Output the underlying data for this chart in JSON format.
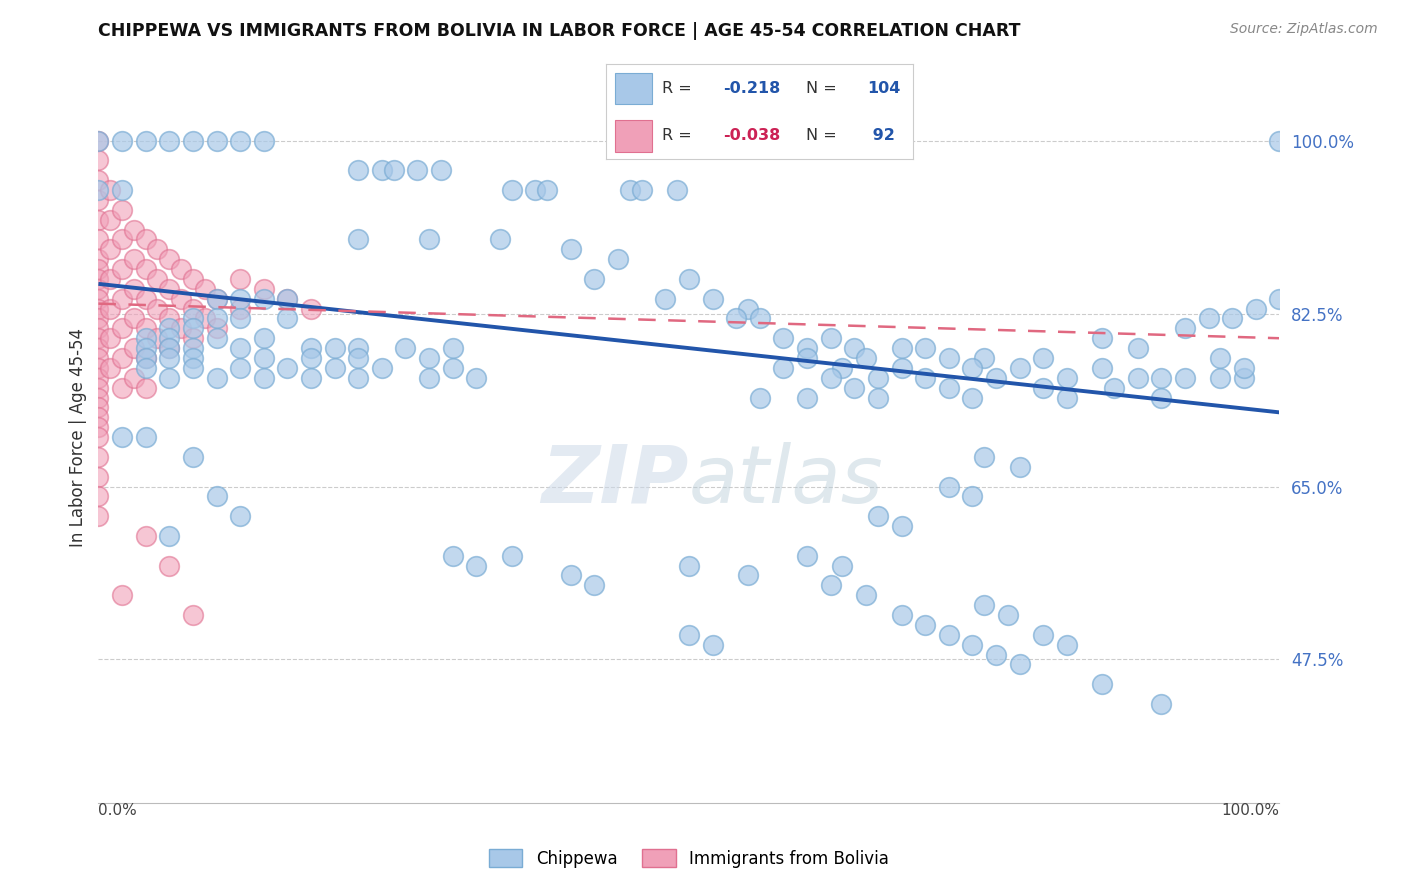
{
  "title": "CHIPPEWA VS IMMIGRANTS FROM BOLIVIA IN LABOR FORCE | AGE 45-54 CORRELATION CHART",
  "source": "Source: ZipAtlas.com",
  "ylabel": "In Labor Force | Age 45-54",
  "blue_color": "#a8c8e8",
  "pink_color": "#f0a0b8",
  "blue_edge_color": "#7aacd4",
  "pink_edge_color": "#e07090",
  "blue_line_color": "#2255aa",
  "pink_line_color": "#e06880",
  "watermark_color": "#d0e4f4",
  "legend_label_blue": "Chippewa",
  "legend_label_pink": "Immigrants from Bolivia",
  "xlim": [
    0.0,
    1.0
  ],
  "ylim": [
    0.33,
    1.07
  ],
  "yticks": [
    0.475,
    0.65,
    0.825,
    1.0
  ],
  "ytick_labels": [
    "47.5%",
    "65.0%",
    "82.5%",
    "100.0%"
  ],
  "blue_trend": [
    0.855,
    0.725
  ],
  "pink_trend": [
    0.835,
    0.8
  ],
  "blue_scatter": [
    [
      0.0,
      1.0
    ],
    [
      0.02,
      1.0
    ],
    [
      0.04,
      1.0
    ],
    [
      0.06,
      1.0
    ],
    [
      0.08,
      1.0
    ],
    [
      0.1,
      1.0
    ],
    [
      0.12,
      1.0
    ],
    [
      0.14,
      1.0
    ],
    [
      0.0,
      0.95
    ],
    [
      0.02,
      0.95
    ],
    [
      0.22,
      0.97
    ],
    [
      0.24,
      0.97
    ],
    [
      0.25,
      0.97
    ],
    [
      0.27,
      0.97
    ],
    [
      0.29,
      0.97
    ],
    [
      0.35,
      0.95
    ],
    [
      0.37,
      0.95
    ],
    [
      0.38,
      0.95
    ],
    [
      0.45,
      0.95
    ],
    [
      0.46,
      0.95
    ],
    [
      0.49,
      0.95
    ],
    [
      0.22,
      0.9
    ],
    [
      0.28,
      0.9
    ],
    [
      0.34,
      0.9
    ],
    [
      0.4,
      0.89
    ],
    [
      0.44,
      0.88
    ],
    [
      0.42,
      0.86
    ],
    [
      0.5,
      0.86
    ],
    [
      0.48,
      0.84
    ],
    [
      0.52,
      0.84
    ],
    [
      0.55,
      0.83
    ],
    [
      0.54,
      0.82
    ],
    [
      0.56,
      0.82
    ],
    [
      0.58,
      0.8
    ],
    [
      0.62,
      0.8
    ],
    [
      0.6,
      0.79
    ],
    [
      0.64,
      0.79
    ],
    [
      0.68,
      0.79
    ],
    [
      0.7,
      0.79
    ],
    [
      0.6,
      0.78
    ],
    [
      0.65,
      0.78
    ],
    [
      0.72,
      0.78
    ],
    [
      0.75,
      0.78
    ],
    [
      0.8,
      0.78
    ],
    [
      0.58,
      0.77
    ],
    [
      0.63,
      0.77
    ],
    [
      0.68,
      0.77
    ],
    [
      0.74,
      0.77
    ],
    [
      0.78,
      0.77
    ],
    [
      0.85,
      0.77
    ],
    [
      0.62,
      0.76
    ],
    [
      0.66,
      0.76
    ],
    [
      0.7,
      0.76
    ],
    [
      0.76,
      0.76
    ],
    [
      0.82,
      0.76
    ],
    [
      0.88,
      0.76
    ],
    [
      0.9,
      0.76
    ],
    [
      0.92,
      0.76
    ],
    [
      0.95,
      0.76
    ],
    [
      0.97,
      0.76
    ],
    [
      0.64,
      0.75
    ],
    [
      0.72,
      0.75
    ],
    [
      0.8,
      0.75
    ],
    [
      0.86,
      0.75
    ],
    [
      0.56,
      0.74
    ],
    [
      0.6,
      0.74
    ],
    [
      0.66,
      0.74
    ],
    [
      0.74,
      0.74
    ],
    [
      0.82,
      0.74
    ],
    [
      0.9,
      0.74
    ],
    [
      0.1,
      0.84
    ],
    [
      0.12,
      0.84
    ],
    [
      0.14,
      0.84
    ],
    [
      0.16,
      0.84
    ],
    [
      0.08,
      0.82
    ],
    [
      0.1,
      0.82
    ],
    [
      0.12,
      0.82
    ],
    [
      0.16,
      0.82
    ],
    [
      0.06,
      0.81
    ],
    [
      0.08,
      0.81
    ],
    [
      0.04,
      0.8
    ],
    [
      0.06,
      0.8
    ],
    [
      0.1,
      0.8
    ],
    [
      0.14,
      0.8
    ],
    [
      0.04,
      0.79
    ],
    [
      0.06,
      0.79
    ],
    [
      0.08,
      0.79
    ],
    [
      0.12,
      0.79
    ],
    [
      0.18,
      0.79
    ],
    [
      0.2,
      0.79
    ],
    [
      0.22,
      0.79
    ],
    [
      0.26,
      0.79
    ],
    [
      0.3,
      0.79
    ],
    [
      0.04,
      0.78
    ],
    [
      0.06,
      0.78
    ],
    [
      0.08,
      0.78
    ],
    [
      0.14,
      0.78
    ],
    [
      0.18,
      0.78
    ],
    [
      0.22,
      0.78
    ],
    [
      0.28,
      0.78
    ],
    [
      0.04,
      0.77
    ],
    [
      0.08,
      0.77
    ],
    [
      0.12,
      0.77
    ],
    [
      0.16,
      0.77
    ],
    [
      0.2,
      0.77
    ],
    [
      0.24,
      0.77
    ],
    [
      0.3,
      0.77
    ],
    [
      0.06,
      0.76
    ],
    [
      0.1,
      0.76
    ],
    [
      0.14,
      0.76
    ],
    [
      0.18,
      0.76
    ],
    [
      0.22,
      0.76
    ],
    [
      0.28,
      0.76
    ],
    [
      0.32,
      0.76
    ],
    [
      0.02,
      0.7
    ],
    [
      0.04,
      0.7
    ],
    [
      0.08,
      0.68
    ],
    [
      0.1,
      0.64
    ],
    [
      0.12,
      0.62
    ],
    [
      0.06,
      0.6
    ],
    [
      0.3,
      0.58
    ],
    [
      0.32,
      0.57
    ],
    [
      0.5,
      0.57
    ],
    [
      0.55,
      0.56
    ],
    [
      0.62,
      0.55
    ],
    [
      0.65,
      0.54
    ],
    [
      0.68,
      0.52
    ],
    [
      0.7,
      0.51
    ],
    [
      0.72,
      0.5
    ],
    [
      0.74,
      0.49
    ],
    [
      0.76,
      0.48
    ],
    [
      0.78,
      0.47
    ],
    [
      0.85,
      0.45
    ],
    [
      0.9,
      0.43
    ],
    [
      0.8,
      0.5
    ],
    [
      0.82,
      0.49
    ],
    [
      0.75,
      0.53
    ],
    [
      0.77,
      0.52
    ],
    [
      0.6,
      0.58
    ],
    [
      0.63,
      0.57
    ],
    [
      0.4,
      0.56
    ],
    [
      0.42,
      0.55
    ],
    [
      0.35,
      0.58
    ],
    [
      1.0,
      1.0
    ],
    [
      1.0,
      0.84
    ],
    [
      0.98,
      0.83
    ],
    [
      0.96,
      0.82
    ],
    [
      0.94,
      0.82
    ],
    [
      0.92,
      0.81
    ],
    [
      0.95,
      0.78
    ],
    [
      0.97,
      0.77
    ],
    [
      0.85,
      0.8
    ],
    [
      0.88,
      0.79
    ],
    [
      0.75,
      0.68
    ],
    [
      0.78,
      0.67
    ],
    [
      0.72,
      0.65
    ],
    [
      0.74,
      0.64
    ],
    [
      0.66,
      0.62
    ],
    [
      0.68,
      0.61
    ],
    [
      0.5,
      0.5
    ],
    [
      0.52,
      0.49
    ]
  ],
  "pink_scatter": [
    [
      0.0,
      1.0
    ],
    [
      0.0,
      0.98
    ],
    [
      0.0,
      0.96
    ],
    [
      0.0,
      0.94
    ],
    [
      0.0,
      0.92
    ],
    [
      0.0,
      0.9
    ],
    [
      0.0,
      0.88
    ],
    [
      0.0,
      0.87
    ],
    [
      0.0,
      0.86
    ],
    [
      0.0,
      0.85
    ],
    [
      0.0,
      0.84
    ],
    [
      0.0,
      0.83
    ],
    [
      0.0,
      0.82
    ],
    [
      0.0,
      0.81
    ],
    [
      0.0,
      0.8
    ],
    [
      0.0,
      0.79
    ],
    [
      0.0,
      0.78
    ],
    [
      0.0,
      0.77
    ],
    [
      0.0,
      0.76
    ],
    [
      0.0,
      0.75
    ],
    [
      0.0,
      0.74
    ],
    [
      0.0,
      0.73
    ],
    [
      0.0,
      0.72
    ],
    [
      0.0,
      0.71
    ],
    [
      0.0,
      0.7
    ],
    [
      0.0,
      0.68
    ],
    [
      0.0,
      0.66
    ],
    [
      0.0,
      0.64
    ],
    [
      0.01,
      0.95
    ],
    [
      0.01,
      0.92
    ],
    [
      0.01,
      0.89
    ],
    [
      0.01,
      0.86
    ],
    [
      0.01,
      0.83
    ],
    [
      0.01,
      0.8
    ],
    [
      0.01,
      0.77
    ],
    [
      0.02,
      0.93
    ],
    [
      0.02,
      0.9
    ],
    [
      0.02,
      0.87
    ],
    [
      0.02,
      0.84
    ],
    [
      0.02,
      0.81
    ],
    [
      0.02,
      0.78
    ],
    [
      0.02,
      0.75
    ],
    [
      0.03,
      0.91
    ],
    [
      0.03,
      0.88
    ],
    [
      0.03,
      0.85
    ],
    [
      0.03,
      0.82
    ],
    [
      0.03,
      0.79
    ],
    [
      0.03,
      0.76
    ],
    [
      0.04,
      0.9
    ],
    [
      0.04,
      0.87
    ],
    [
      0.04,
      0.84
    ],
    [
      0.04,
      0.81
    ],
    [
      0.04,
      0.78
    ],
    [
      0.04,
      0.75
    ],
    [
      0.05,
      0.89
    ],
    [
      0.05,
      0.86
    ],
    [
      0.05,
      0.83
    ],
    [
      0.05,
      0.8
    ],
    [
      0.06,
      0.88
    ],
    [
      0.06,
      0.85
    ],
    [
      0.06,
      0.82
    ],
    [
      0.06,
      0.79
    ],
    [
      0.07,
      0.87
    ],
    [
      0.07,
      0.84
    ],
    [
      0.07,
      0.81
    ],
    [
      0.08,
      0.86
    ],
    [
      0.08,
      0.83
    ],
    [
      0.08,
      0.8
    ],
    [
      0.09,
      0.85
    ],
    [
      0.09,
      0.82
    ],
    [
      0.1,
      0.84
    ],
    [
      0.1,
      0.81
    ],
    [
      0.12,
      0.86
    ],
    [
      0.12,
      0.83
    ],
    [
      0.14,
      0.85
    ],
    [
      0.16,
      0.84
    ],
    [
      0.18,
      0.83
    ],
    [
      0.04,
      0.6
    ],
    [
      0.06,
      0.57
    ],
    [
      0.0,
      0.62
    ],
    [
      0.02,
      0.54
    ],
    [
      0.08,
      0.52
    ]
  ]
}
